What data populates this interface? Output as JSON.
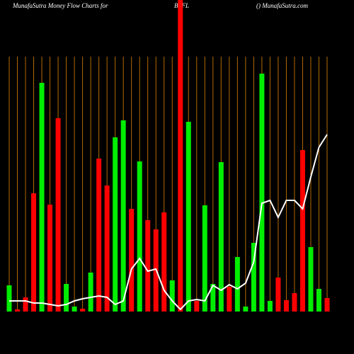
{
  "chart_data": {
    "type": "bar",
    "title": "MunafaSutra  Money Flow  Charts for",
    "symbol": "BTFL",
    "source": "() MunafaSutra.com",
    "categories": [
      null,
      null,
      null,
      null,
      null,
      null,
      null,
      null,
      null,
      null,
      null,
      null,
      null,
      null,
      null,
      null,
      null,
      null,
      null,
      null,
      null,
      null,
      null,
      null,
      null,
      null,
      null,
      null,
      null,
      null,
      null,
      null,
      null,
      null,
      null,
      null,
      null,
      null,
      null,
      null
    ],
    "values": [
      37,
      3,
      20,
      167,
      323,
      151,
      273,
      39,
      7,
      4,
      55,
      216,
      178,
      246,
      270,
      145,
      212,
      129,
      116,
      140,
      44,
      440,
      268,
      15,
      150,
      39,
      211,
      35,
      77,
      7,
      97,
      336,
      15,
      48,
      16,
      26,
      228,
      91,
      32,
      19
    ],
    "colors": [
      "#00ee00",
      "#ff0000",
      "#ff0000",
      "#ff0000",
      "#00ee00",
      "#ff0000",
      "#ff0000",
      "#00ee00",
      "#00ee00",
      "#ff0000",
      "#00ee00",
      "#ff0000",
      "#ff0000",
      "#00ee00",
      "#00ee00",
      "#ff0000",
      "#00ee00",
      "#ff0000",
      "#ff0000",
      "#ff0000",
      "#00ee00",
      "#ff0000",
      "#00ee00",
      "#ff0000",
      "#00ee00",
      "#00ee00",
      "#00ee00",
      "#ff0000",
      "#00ee00",
      "#00ee00",
      "#00ee00",
      "#00ee00",
      "#00ee00",
      "#ff0000",
      "#ff0000",
      "#ff0000",
      "#ff0000",
      "#00ee00",
      "#00ee00",
      "#ff0000"
    ],
    "line_values": [
      15,
      15,
      15,
      12,
      12,
      10,
      8,
      10,
      15,
      18,
      20,
      22,
      20,
      10,
      15,
      60,
      75,
      57,
      60,
      30,
      15,
      3,
      15,
      17,
      15,
      37,
      30,
      38,
      32,
      40,
      70,
      153,
      157,
      133,
      157,
      157,
      145,
      190,
      232,
      250
    ],
    "line_color": "#ffffff",
    "ylim": [
      0,
      440
    ],
    "grid": true,
    "grid_color": "#b36b00"
  }
}
